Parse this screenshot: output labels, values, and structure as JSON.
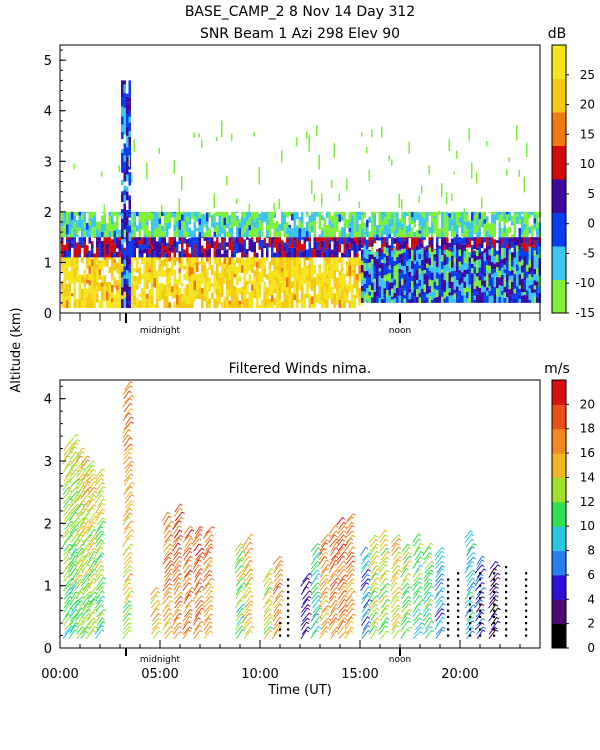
{
  "header": {
    "title_line1": "BASE_CAMP_2    8 Nov 14 Day 312",
    "title_line2": "SNR Beam 1 Azi 298 Elev 90"
  },
  "shared": {
    "ylabel": "Altitude (km)",
    "xlabel": "Time (UT)",
    "x_ticks": [
      "00:00",
      "05:00",
      "10:00",
      "15:00",
      "20:00"
    ],
    "markers": [
      "midnight",
      "noon"
    ]
  },
  "chart_data": [
    {
      "type": "heatmap",
      "title": "SNR Beam 1 Azi 298 Elev 90",
      "ylabel": "Altitude (km)",
      "xlim": [
        0,
        24
      ],
      "ylim": [
        0,
        5.3
      ],
      "y_ticks": [
        "0",
        "1",
        "2",
        "3",
        "4",
        "5"
      ],
      "colorbar": {
        "unit": "dB",
        "ticks": [
          "-15",
          "-10",
          "-5",
          "0",
          "5",
          "10",
          "15",
          "20",
          "25"
        ],
        "range": [
          -15,
          30
        ],
        "colors": [
          "#7ef03c",
          "#3cc6ee",
          "#0a3cf0",
          "#3c0a9e",
          "#d20a0a",
          "#f07a10",
          "#f5c814",
          "#f5e41e"
        ]
      },
      "layers": [
        {
          "alt_range": [
            0.1,
            1.1
          ],
          "level_db": 25,
          "hours": [
            0,
            15
          ]
        },
        {
          "alt_range": [
            1.1,
            1.5
          ],
          "level_db": 5,
          "hours": [
            0,
            24
          ]
        },
        {
          "alt_range": [
            1.5,
            2.0
          ],
          "level_db": -10,
          "hours": [
            0,
            24
          ]
        },
        {
          "alt_range": [
            0.1,
            4.6
          ],
          "level_db": 0,
          "hours": [
            3.0,
            3.5
          ]
        }
      ]
    },
    {
      "type": "scatter",
      "title": "Filtered Winds nima.",
      "ylabel": "Altitude (km)",
      "xlabel": "Time (UT)",
      "xlim": [
        0,
        24
      ],
      "ylim": [
        0,
        4.3
      ],
      "y_ticks": [
        "0",
        "1",
        "2",
        "3",
        "4"
      ],
      "colorbar": {
        "unit": "m/s",
        "ticks": [
          "0",
          "2",
          "4",
          "6",
          "8",
          "10",
          "12",
          "14",
          "16",
          "18",
          "20"
        ],
        "range": [
          0,
          22
        ],
        "colors": [
          "#000000",
          "#4a0a6e",
          "#2a10d8",
          "#2880f0",
          "#28c8e0",
          "#30e050",
          "#a0e028",
          "#f0b820",
          "#f08a20",
          "#e85018",
          "#d81010"
        ]
      },
      "wind_columns": [
        {
          "hour": 0.2,
          "alt_top": 3.2,
          "speed": 14
        },
        {
          "hour": 0.5,
          "alt_top": 3.3,
          "speed": 14
        },
        {
          "hour": 0.8,
          "alt_top": 3.1,
          "speed": 15
        },
        {
          "hour": 1.1,
          "alt_top": 3.0,
          "speed": 15
        },
        {
          "hour": 1.4,
          "alt_top": 2.9,
          "speed": 15
        },
        {
          "hour": 1.8,
          "alt_top": 2.8,
          "speed": 14
        },
        {
          "hour": 3.2,
          "alt_top": 4.2,
          "speed": 18
        },
        {
          "hour": 4.6,
          "alt_top": 0.9,
          "speed": 16
        },
        {
          "hour": 5.2,
          "alt_top": 2.1,
          "speed": 18
        },
        {
          "hour": 5.7,
          "alt_top": 2.2,
          "speed": 19
        },
        {
          "hour": 6.2,
          "alt_top": 1.9,
          "speed": 19
        },
        {
          "hour": 6.7,
          "alt_top": 1.9,
          "speed": 19
        },
        {
          "hour": 7.2,
          "alt_top": 1.9,
          "speed": 18
        },
        {
          "hour": 8.8,
          "alt_top": 1.6,
          "speed": 13
        },
        {
          "hour": 9.2,
          "alt_top": 1.7,
          "speed": 16
        },
        {
          "hour": 10.2,
          "alt_top": 1.2,
          "speed": 14
        },
        {
          "hour": 10.7,
          "alt_top": 1.4,
          "speed": 18
        },
        {
          "hour": 12.1,
          "alt_top": 1.1,
          "speed": 4
        },
        {
          "hour": 12.6,
          "alt_top": 1.6,
          "speed": 11
        },
        {
          "hour": 13.0,
          "alt_top": 1.7,
          "speed": 18
        },
        {
          "hour": 13.5,
          "alt_top": 1.9,
          "speed": 19
        },
        {
          "hour": 13.9,
          "alt_top": 2.0,
          "speed": 19
        },
        {
          "hour": 14.3,
          "alt_top": 2.1,
          "speed": 18
        },
        {
          "hour": 15.1,
          "alt_top": 1.5,
          "speed": 8
        },
        {
          "hour": 15.5,
          "alt_top": 1.7,
          "speed": 14
        },
        {
          "hour": 16.0,
          "alt_top": 1.8,
          "speed": 14
        },
        {
          "hour": 16.6,
          "alt_top": 1.7,
          "speed": 15
        },
        {
          "hour": 17.1,
          "alt_top": 1.6,
          "speed": 13
        },
        {
          "hour": 17.7,
          "alt_top": 1.7,
          "speed": 12
        },
        {
          "hour": 18.2,
          "alt_top": 1.6,
          "speed": 12
        },
        {
          "hour": 18.8,
          "alt_top": 1.5,
          "speed": 8
        },
        {
          "hour": 20.3,
          "alt_top": 1.8,
          "speed": 10
        },
        {
          "hour": 20.8,
          "alt_top": 1.4,
          "speed": 6
        },
        {
          "hour": 21.5,
          "alt_top": 1.3,
          "speed": 4
        }
      ],
      "dot_columns": [
        {
          "hour": 11.0,
          "alt_top": 0.4
        },
        {
          "hour": 11.4,
          "alt_top": 1.1
        },
        {
          "hour": 19.4,
          "alt_top": 1.1
        },
        {
          "hour": 19.9,
          "alt_top": 1.2
        },
        {
          "hour": 20.5,
          "alt_top": 0.8
        },
        {
          "hour": 21.0,
          "alt_top": 1.2
        },
        {
          "hour": 21.7,
          "alt_top": 1.2
        },
        {
          "hour": 22.3,
          "alt_top": 1.3
        },
        {
          "hour": 23.3,
          "alt_top": 1.2
        }
      ]
    }
  ]
}
